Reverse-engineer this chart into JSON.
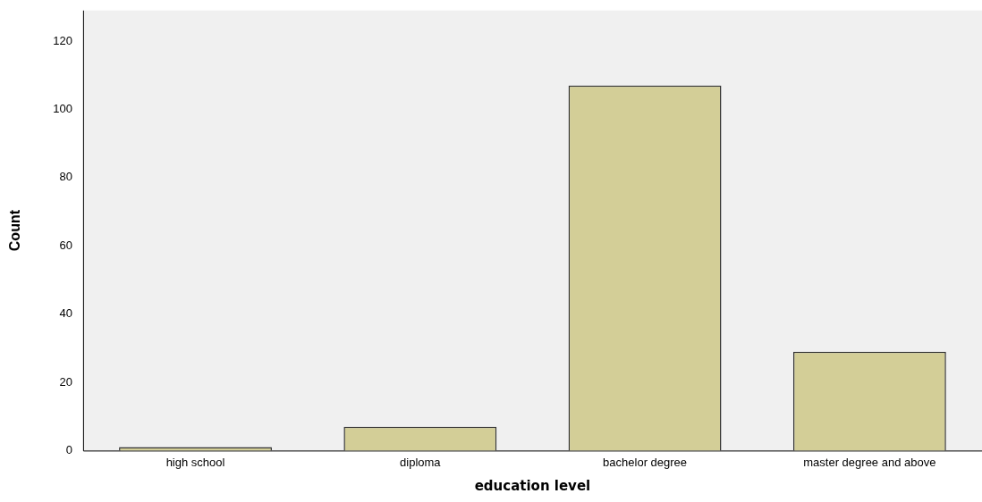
{
  "chart_data": {
    "type": "bar",
    "xlabel": "education level",
    "ylabel": "Count",
    "categories": [
      "high school",
      "diploma",
      "bachelor degree",
      "master degree and above"
    ],
    "values": [
      1,
      7,
      107,
      29
    ],
    "color": "#d3ce97",
    "ylim": [
      0,
      129
    ],
    "yticks": [
      0,
      20,
      40,
      60,
      80,
      100,
      120
    ],
    "grid": false,
    "legend": false
  }
}
